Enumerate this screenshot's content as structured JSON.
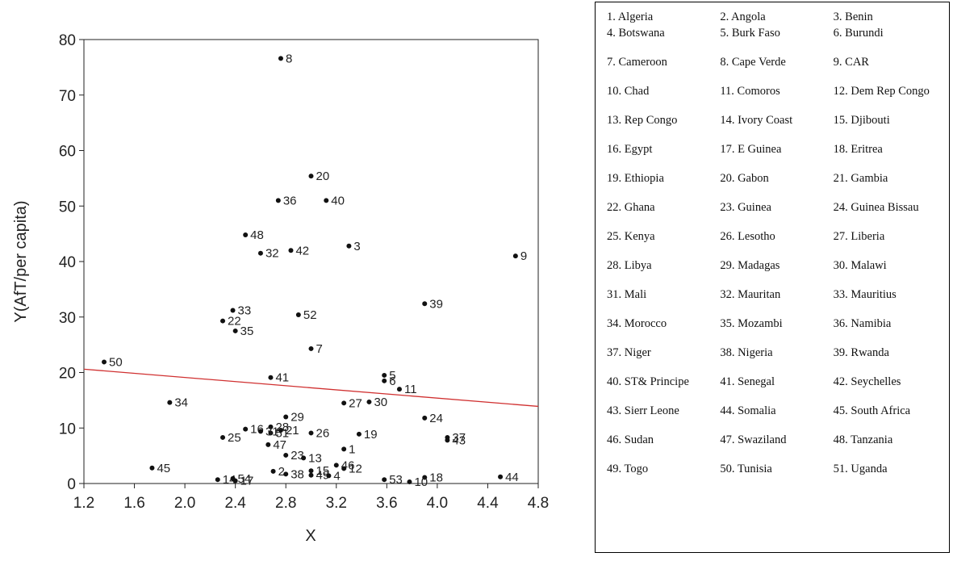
{
  "chart_data": {
    "type": "scatter",
    "xlabel": "X",
    "ylabel": "Y(AfT/per capita)",
    "xlim": [
      1.2,
      4.8
    ],
    "ylim": [
      0,
      80
    ],
    "xticks": [
      "1.2",
      "1.6",
      "2.0",
      "2.4",
      "2.8",
      "3.2",
      "3.6",
      "4.0",
      "4.4",
      "4.8"
    ],
    "yticks": [
      "0",
      "10",
      "20",
      "30",
      "40",
      "50",
      "60",
      "70",
      "80"
    ],
    "grid": false,
    "fit_line": {
      "color": "#d03030",
      "x": [
        1.2,
        4.8
      ],
      "y": [
        20.6,
        13.9
      ]
    },
    "points": [
      {
        "label": "8",
        "x": 2.76,
        "y": 76.6
      },
      {
        "label": "20",
        "x": 3.0,
        "y": 55.4
      },
      {
        "label": "36",
        "x": 2.74,
        "y": 51.0
      },
      {
        "label": "40",
        "x": 3.12,
        "y": 51.0
      },
      {
        "label": "48",
        "x": 2.48,
        "y": 44.8
      },
      {
        "label": "3",
        "x": 3.3,
        "y": 42.8
      },
      {
        "label": "42",
        "x": 2.84,
        "y": 42.0
      },
      {
        "label": "32",
        "x": 2.6,
        "y": 41.5
      },
      {
        "label": "9",
        "x": 4.62,
        "y": 41.0
      },
      {
        "label": "39",
        "x": 3.9,
        "y": 32.4
      },
      {
        "label": "33",
        "x": 2.38,
        "y": 31.2
      },
      {
        "label": "52",
        "x": 2.9,
        "y": 30.4
      },
      {
        "label": "22",
        "x": 2.3,
        "y": 29.3
      },
      {
        "label": "35",
        "x": 2.4,
        "y": 27.5
      },
      {
        "label": "7",
        "x": 3.0,
        "y": 24.3
      },
      {
        "label": "50",
        "x": 1.36,
        "y": 21.9
      },
      {
        "label": "5",
        "x": 3.58,
        "y": 19.5
      },
      {
        "label": "41",
        "x": 2.68,
        "y": 19.1
      },
      {
        "label": "6",
        "x": 3.58,
        "y": 18.5
      },
      {
        "label": "11",
        "x": 3.7,
        "y": 17.0
      },
      {
        "label": "30",
        "x": 3.46,
        "y": 14.7
      },
      {
        "label": "34",
        "x": 1.88,
        "y": 14.6
      },
      {
        "label": "27",
        "x": 3.26,
        "y": 14.5
      },
      {
        "label": "29",
        "x": 2.8,
        "y": 12.0
      },
      {
        "label": "24",
        "x": 3.9,
        "y": 11.8
      },
      {
        "label": "28",
        "x": 2.68,
        "y": 10.2
      },
      {
        "label": "16",
        "x": 2.48,
        "y": 9.8
      },
      {
        "label": "21",
        "x": 2.76,
        "y": 9.6
      },
      {
        "label": "51",
        "x": 2.68,
        "y": 9.1
      },
      {
        "label": "31",
        "x": 2.6,
        "y": 9.4
      },
      {
        "label": "26",
        "x": 3.0,
        "y": 9.1
      },
      {
        "label": "19",
        "x": 3.38,
        "y": 8.9
      },
      {
        "label": "25",
        "x": 2.3,
        "y": 8.3
      },
      {
        "label": "37",
        "x": 4.08,
        "y": 8.3
      },
      {
        "label": "43",
        "x": 4.08,
        "y": 7.8
      },
      {
        "label": "47",
        "x": 2.66,
        "y": 7.0
      },
      {
        "label": "1",
        "x": 3.26,
        "y": 6.2
      },
      {
        "label": "23",
        "x": 2.8,
        "y": 5.1
      },
      {
        "label": "13",
        "x": 2.94,
        "y": 4.6
      },
      {
        "label": "46",
        "x": 3.2,
        "y": 3.3
      },
      {
        "label": "45",
        "x": 1.74,
        "y": 2.8
      },
      {
        "label": "12",
        "x": 3.26,
        "y": 2.7
      },
      {
        "label": "2",
        "x": 2.7,
        "y": 2.2
      },
      {
        "label": "15",
        "x": 3.0,
        "y": 2.3
      },
      {
        "label": "38",
        "x": 2.8,
        "y": 1.7
      },
      {
        "label": "49",
        "x": 3.0,
        "y": 1.5
      },
      {
        "label": "4",
        "x": 3.14,
        "y": 1.4
      },
      {
        "label": "18",
        "x": 3.9,
        "y": 1.1
      },
      {
        "label": "44",
        "x": 4.5,
        "y": 1.2
      },
      {
        "label": "53",
        "x": 3.58,
        "y": 0.7
      },
      {
        "label": "10",
        "x": 3.78,
        "y": 0.3
      },
      {
        "label": "14",
        "x": 2.26,
        "y": 0.7
      },
      {
        "label": "17",
        "x": 2.4,
        "y": 0.5
      },
      {
        "label": "54",
        "x": 2.38,
        "y": 0.9
      }
    ]
  },
  "legend": [
    [
      "1. Algeria",
      "2. Angola",
      "3. Benin"
    ],
    [
      "4. Botswana",
      "5. Burk Faso",
      "6. Burundi"
    ],
    [
      "7. Cameroon",
      "8. Cape Verde",
      "9. CAR"
    ],
    [
      "10. Chad",
      "11. Comoros",
      "12. Dem Rep Congo"
    ],
    [
      "13. Rep Congo",
      "14. Ivory Coast",
      "15. Djibouti"
    ],
    [
      "16. Egypt",
      "17. E Guinea",
      "18. Eritrea"
    ],
    [
      "19. Ethiopia",
      "20. Gabon",
      "21. Gambia"
    ],
    [
      "22. Ghana",
      "23. Guinea",
      "24. Guinea Bissau"
    ],
    [
      "25. Kenya",
      "26. Lesotho",
      "27. Liberia"
    ],
    [
      "28. Libya",
      "29. Madagas",
      "30. Malawi"
    ],
    [
      "31. Mali",
      "32. Mauritan",
      "33. Mauritius"
    ],
    [
      "34. Morocco",
      "35. Mozambi",
      "36. Namibia"
    ],
    [
      "37. Niger",
      "38. Nigeria",
      "39. Rwanda"
    ],
    [
      "40. ST& Principe",
      "41. Senegal",
      "42. Seychelles"
    ],
    [
      "43. Sierr Leone",
      "44. Somalia",
      "45. South Africa"
    ],
    [
      "46. Sudan",
      "47. Swaziland",
      "48. Tanzania"
    ],
    [
      "49. Togo",
      "50. Tunisia",
      "51. Uganda"
    ]
  ]
}
